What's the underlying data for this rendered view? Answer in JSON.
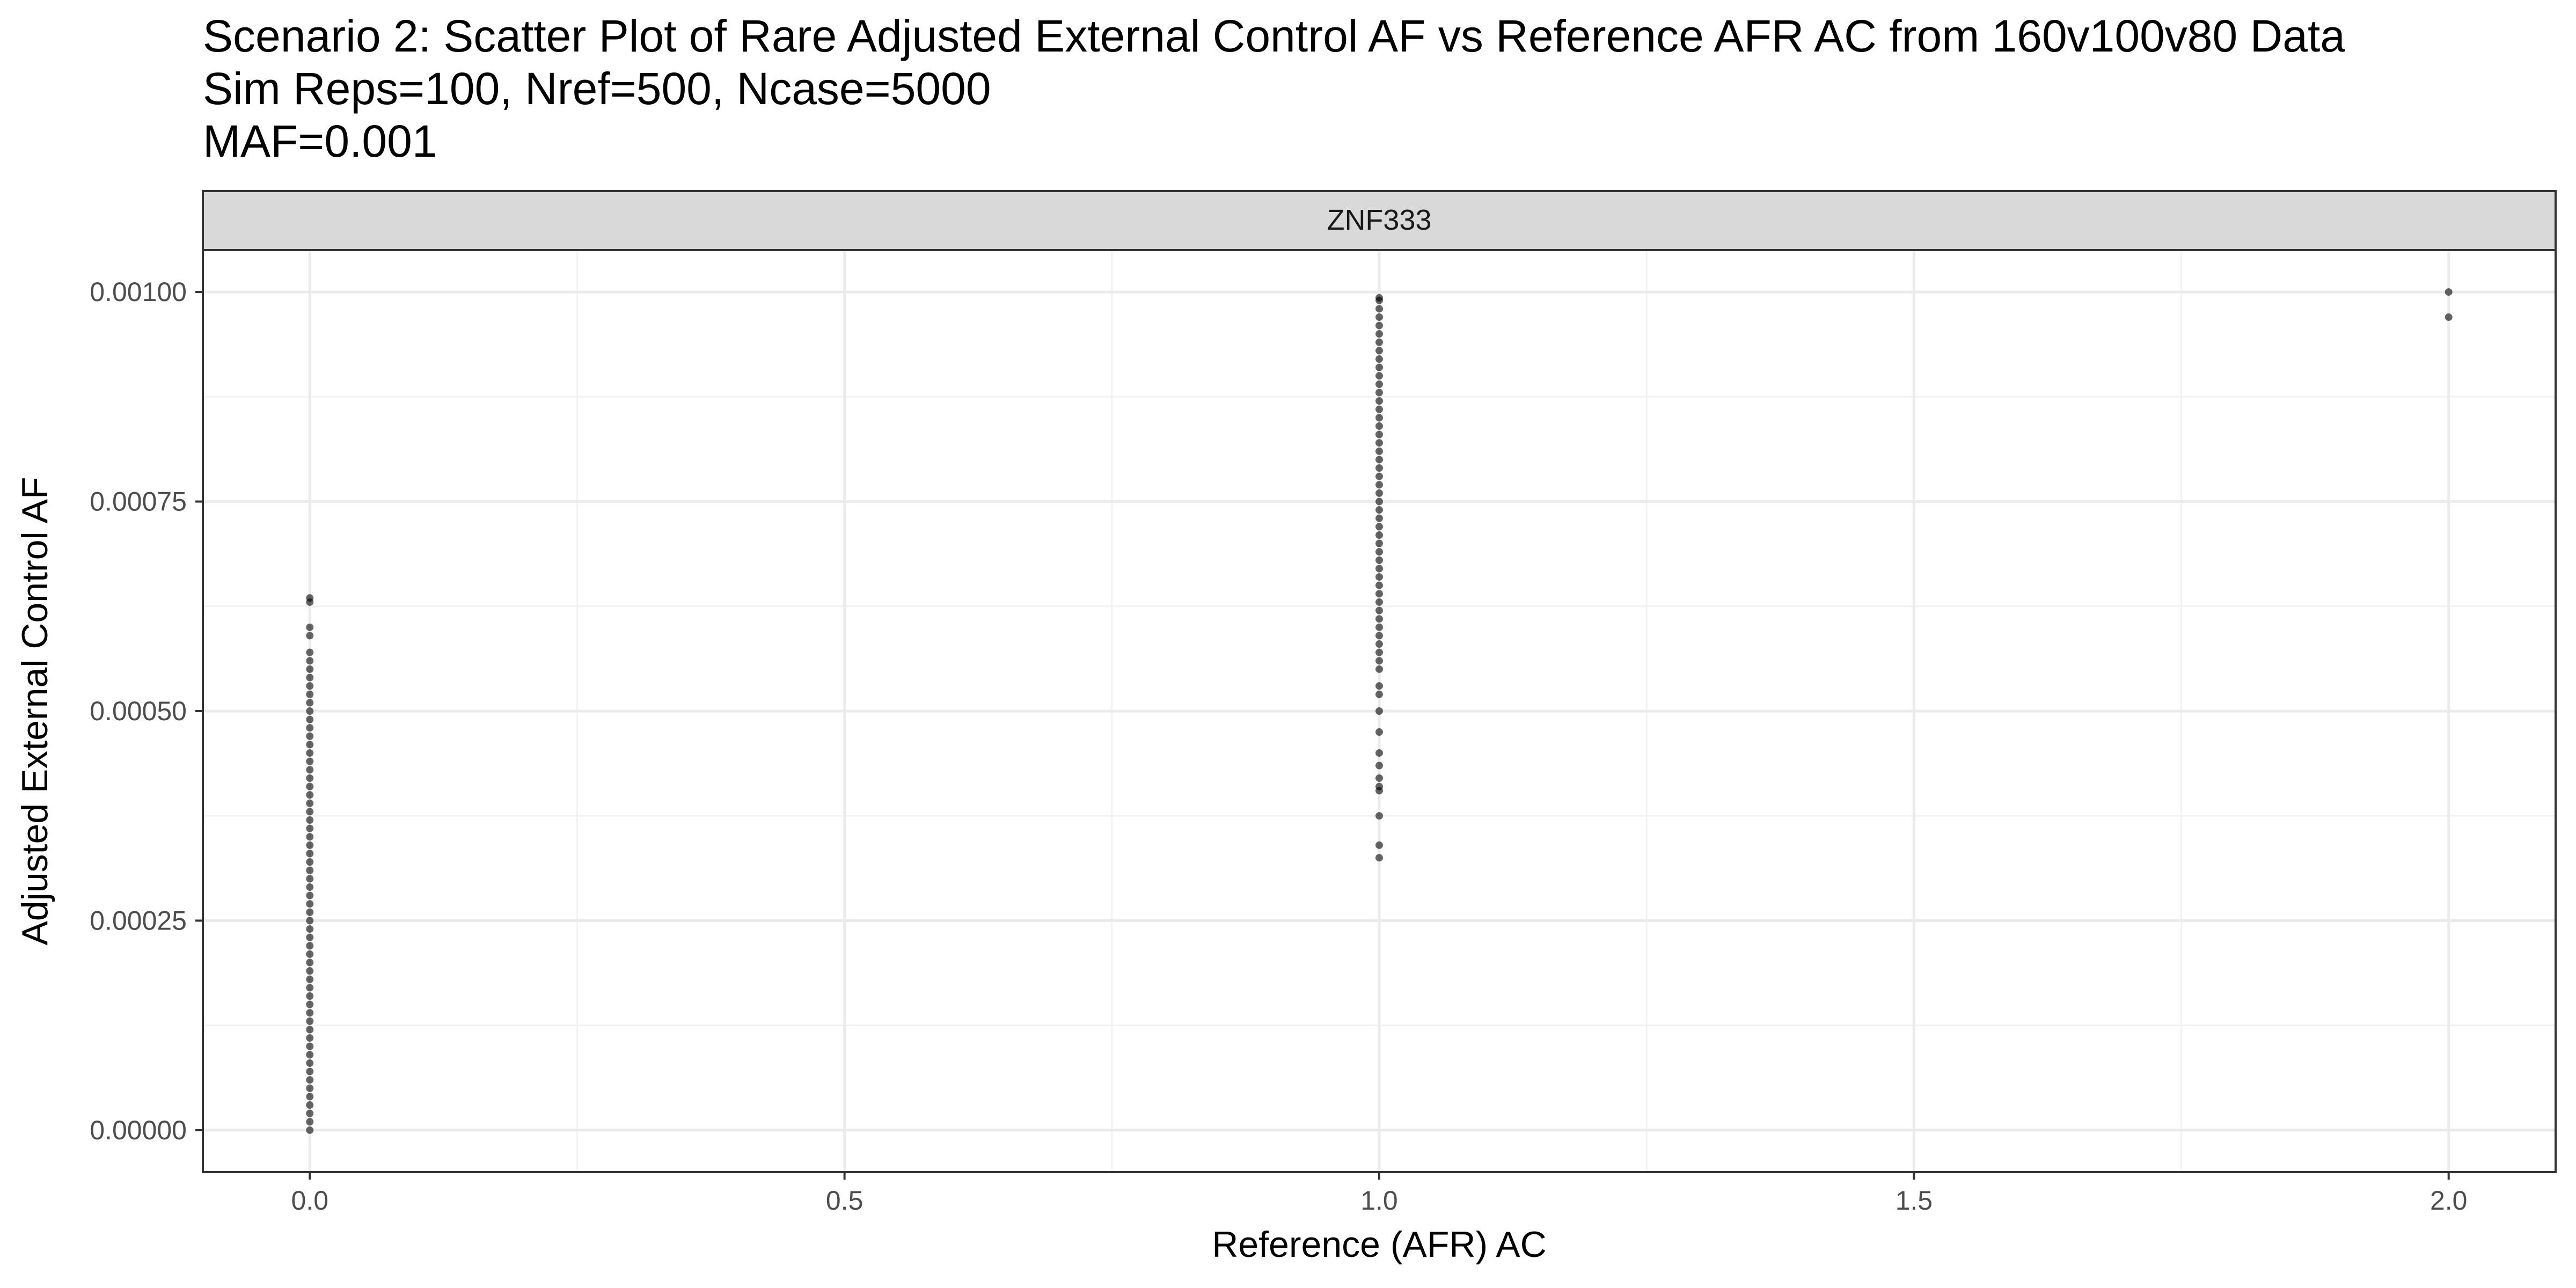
{
  "chart_data": {
    "type": "scatter",
    "title_lines": [
      "Scenario 2: Scatter Plot of Rare Adjusted External Control AF vs Reference AFR AC from 160v100v80 Data",
      "Sim Reps=100, Nref=500, Ncase=5000",
      "MAF=0.001"
    ],
    "facet_label": "ZNF333",
    "xlabel": "Reference (AFR) AC",
    "ylabel": "Adjusted External Control AF",
    "xlim": [
      -0.1,
      2.1
    ],
    "ylim": [
      -5e-05,
      0.00105
    ],
    "x_ticks": [
      0,
      0.5,
      1,
      1.5,
      2
    ],
    "x_tick_labels": [
      "0.0",
      "0.5",
      "1.0",
      "1.5",
      "2.0"
    ],
    "x_minor_ticks": [
      0.25,
      0.75,
      1.25,
      1.75
    ],
    "y_ticks": [
      0,
      0.00025,
      0.0005,
      0.00075,
      0.001
    ],
    "y_tick_labels": [
      "0.00000",
      "0.00025",
      "0.00050",
      "0.00075",
      "0.00100"
    ],
    "y_minor_ticks": [
      0.000125,
      0.000375,
      0.000625,
      0.000875
    ],
    "grid": true,
    "point_color": "#000000",
    "point_opacity": 0.6,
    "points": [
      {
        "x": 0,
        "y": 0.0
      },
      {
        "x": 0,
        "y": 1e-05
      },
      {
        "x": 0,
        "y": 2e-05
      },
      {
        "x": 0,
        "y": 3e-05
      },
      {
        "x": 0,
        "y": 4e-05
      },
      {
        "x": 0,
        "y": 5e-05
      },
      {
        "x": 0,
        "y": 6e-05
      },
      {
        "x": 0,
        "y": 7e-05
      },
      {
        "x": 0,
        "y": 8e-05
      },
      {
        "x": 0,
        "y": 9e-05
      },
      {
        "x": 0,
        "y": 0.0001
      },
      {
        "x": 0,
        "y": 0.00011
      },
      {
        "x": 0,
        "y": 0.00012
      },
      {
        "x": 0,
        "y": 0.00013
      },
      {
        "x": 0,
        "y": 0.00014
      },
      {
        "x": 0,
        "y": 0.00015
      },
      {
        "x": 0,
        "y": 0.00016
      },
      {
        "x": 0,
        "y": 0.00017
      },
      {
        "x": 0,
        "y": 0.00018
      },
      {
        "x": 0,
        "y": 0.00019
      },
      {
        "x": 0,
        "y": 0.0002
      },
      {
        "x": 0,
        "y": 0.00021
      },
      {
        "x": 0,
        "y": 0.00022
      },
      {
        "x": 0,
        "y": 0.00023
      },
      {
        "x": 0,
        "y": 0.00024
      },
      {
        "x": 0,
        "y": 0.00025
      },
      {
        "x": 0,
        "y": 0.00026
      },
      {
        "x": 0,
        "y": 0.00027
      },
      {
        "x": 0,
        "y": 0.00028
      },
      {
        "x": 0,
        "y": 0.00029
      },
      {
        "x": 0,
        "y": 0.0003
      },
      {
        "x": 0,
        "y": 0.00031
      },
      {
        "x": 0,
        "y": 0.00032
      },
      {
        "x": 0,
        "y": 0.00033
      },
      {
        "x": 0,
        "y": 0.00034
      },
      {
        "x": 0,
        "y": 0.00035
      },
      {
        "x": 0,
        "y": 0.00036
      },
      {
        "x": 0,
        "y": 0.00037
      },
      {
        "x": 0,
        "y": 0.00038
      },
      {
        "x": 0,
        "y": 0.00039
      },
      {
        "x": 0,
        "y": 0.0004
      },
      {
        "x": 0,
        "y": 0.00041
      },
      {
        "x": 0,
        "y": 0.00042
      },
      {
        "x": 0,
        "y": 0.00043
      },
      {
        "x": 0,
        "y": 0.00044
      },
      {
        "x": 0,
        "y": 0.00045
      },
      {
        "x": 0,
        "y": 0.00046
      },
      {
        "x": 0,
        "y": 0.00047
      },
      {
        "x": 0,
        "y": 0.00048
      },
      {
        "x": 0,
        "y": 0.00049
      },
      {
        "x": 0,
        "y": 0.0005
      },
      {
        "x": 0,
        "y": 0.00051
      },
      {
        "x": 0,
        "y": 0.00052
      },
      {
        "x": 0,
        "y": 0.00053
      },
      {
        "x": 0,
        "y": 0.00054
      },
      {
        "x": 0,
        "y": 0.00055
      },
      {
        "x": 0,
        "y": 0.00056
      },
      {
        "x": 0,
        "y": 0.00057
      },
      {
        "x": 0,
        "y": 0.00059
      },
      {
        "x": 0,
        "y": 0.0006
      },
      {
        "x": 0,
        "y": 0.00063
      },
      {
        "x": 0,
        "y": 0.000635
      },
      {
        "x": 1,
        "y": 0.000325
      },
      {
        "x": 1,
        "y": 0.00034
      },
      {
        "x": 1,
        "y": 0.000375
      },
      {
        "x": 1,
        "y": 0.000405
      },
      {
        "x": 1,
        "y": 0.00041
      },
      {
        "x": 1,
        "y": 0.00042
      },
      {
        "x": 1,
        "y": 0.000435
      },
      {
        "x": 1,
        "y": 0.00045
      },
      {
        "x": 1,
        "y": 0.000475
      },
      {
        "x": 1,
        "y": 0.0005
      },
      {
        "x": 1,
        "y": 0.00052
      },
      {
        "x": 1,
        "y": 0.00053
      },
      {
        "x": 1,
        "y": 0.00055
      },
      {
        "x": 1,
        "y": 0.00056
      },
      {
        "x": 1,
        "y": 0.00057
      },
      {
        "x": 1,
        "y": 0.00058
      },
      {
        "x": 1,
        "y": 0.00059
      },
      {
        "x": 1,
        "y": 0.0006
      },
      {
        "x": 1,
        "y": 0.00061
      },
      {
        "x": 1,
        "y": 0.00062
      },
      {
        "x": 1,
        "y": 0.00063
      },
      {
        "x": 1,
        "y": 0.00064
      },
      {
        "x": 1,
        "y": 0.00065
      },
      {
        "x": 1,
        "y": 0.00066
      },
      {
        "x": 1,
        "y": 0.00067
      },
      {
        "x": 1,
        "y": 0.00068
      },
      {
        "x": 1,
        "y": 0.00069
      },
      {
        "x": 1,
        "y": 0.0007
      },
      {
        "x": 1,
        "y": 0.00071
      },
      {
        "x": 1,
        "y": 0.00072
      },
      {
        "x": 1,
        "y": 0.00073
      },
      {
        "x": 1,
        "y": 0.00074
      },
      {
        "x": 1,
        "y": 0.00075
      },
      {
        "x": 1,
        "y": 0.00076
      },
      {
        "x": 1,
        "y": 0.00077
      },
      {
        "x": 1,
        "y": 0.00078
      },
      {
        "x": 1,
        "y": 0.00079
      },
      {
        "x": 1,
        "y": 0.0008
      },
      {
        "x": 1,
        "y": 0.00081
      },
      {
        "x": 1,
        "y": 0.00082
      },
      {
        "x": 1,
        "y": 0.00083
      },
      {
        "x": 1,
        "y": 0.00084
      },
      {
        "x": 1,
        "y": 0.00085
      },
      {
        "x": 1,
        "y": 0.00086
      },
      {
        "x": 1,
        "y": 0.00087
      },
      {
        "x": 1,
        "y": 0.00088
      },
      {
        "x": 1,
        "y": 0.00089
      },
      {
        "x": 1,
        "y": 0.0009
      },
      {
        "x": 1,
        "y": 0.00091
      },
      {
        "x": 1,
        "y": 0.00092
      },
      {
        "x": 1,
        "y": 0.00093
      },
      {
        "x": 1,
        "y": 0.00094
      },
      {
        "x": 1,
        "y": 0.00095
      },
      {
        "x": 1,
        "y": 0.00096
      },
      {
        "x": 1,
        "y": 0.00097
      },
      {
        "x": 1,
        "y": 0.00098
      },
      {
        "x": 1,
        "y": 0.00099
      },
      {
        "x": 1,
        "y": 0.000993
      },
      {
        "x": 2,
        "y": 0.00097
      },
      {
        "x": 2,
        "y": 0.001
      }
    ]
  }
}
